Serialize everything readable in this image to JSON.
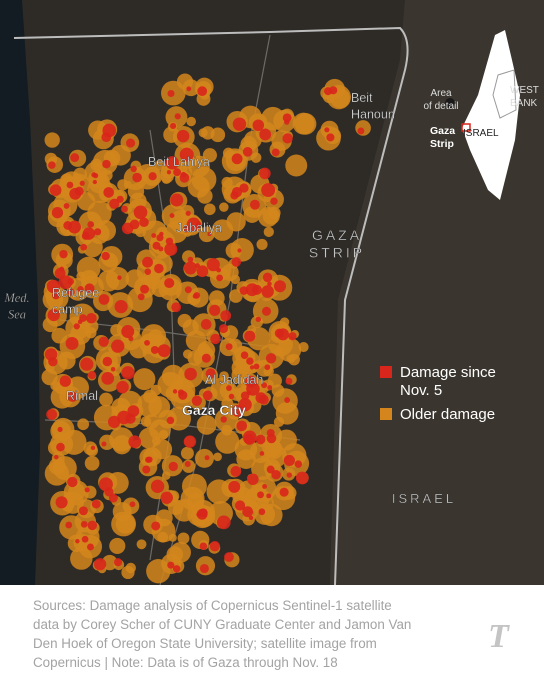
{
  "map": {
    "place_labels": [
      {
        "lines": [
          "Beit",
          "Hanoun"
        ]
      },
      {
        "lines": [
          "Beit Lahiya"
        ]
      },
      {
        "lines": [
          "Jabaliya"
        ]
      },
      {
        "lines": [
          "GAZA",
          "STRIP"
        ]
      },
      {
        "lines": [
          "Med.",
          "Sea"
        ]
      },
      {
        "lines": [
          "Refugee",
          "camp"
        ]
      },
      {
        "lines": [
          "Al Jadidah"
        ]
      },
      {
        "lines": [
          "Rimal"
        ]
      },
      {
        "lines": [
          "Gaza City"
        ]
      },
      {
        "lines": [
          "ISRAEL"
        ]
      }
    ],
    "legend": [
      {
        "lines": [
          "Damage since",
          "Nov. 5"
        ],
        "color": "#d8261c"
      },
      {
        "lines": [
          "Older damage"
        ],
        "color": "#d4861c"
      }
    ],
    "inset": {
      "labels": [
        {
          "lines": [
            "Area",
            "of detail"
          ]
        },
        {
          "lines": [
            "WEST",
            "BANK"
          ]
        },
        {
          "lines": [
            "Gaza",
            "Strip"
          ]
        },
        {
          "lines": [
            "ISRAEL"
          ]
        }
      ]
    }
  },
  "caption": {
    "lines": [
      "Sources: Damage analysis of Copernicus Sentinel-1 satellite",
      "data by Corey Scher of CUNY Graduate Center and Jamon Van",
      "Den Hoek of Oregon State University; satellite image from",
      "Copernicus | Note: Data is of Gaza through Nov. 18"
    ]
  },
  "logo": "T"
}
